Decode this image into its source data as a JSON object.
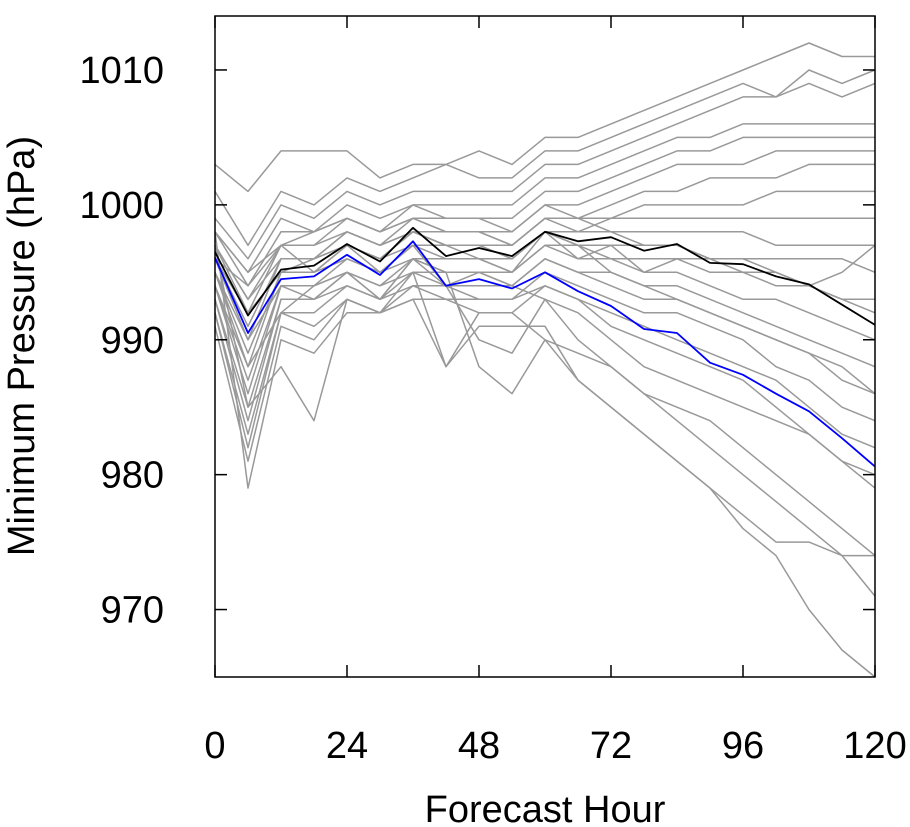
{
  "chart_data": {
    "type": "line",
    "title": "",
    "xlabel": "Forecast Hour",
    "ylabel": "Minimum Pressure (hPa)",
    "xlim": [
      0,
      120
    ],
    "ylim": [
      965,
      1014
    ],
    "xticks": [
      0,
      24,
      48,
      72,
      96,
      120
    ],
    "yticks": [
      970,
      980,
      990,
      1000,
      1010
    ],
    "grid": false,
    "legend": "none",
    "colors": {
      "ensemble": "#999999",
      "black_line": "#000000",
      "blue_line": "#0000ff"
    },
    "x": [
      0,
      6,
      12,
      18,
      24,
      30,
      36,
      42,
      48,
      54,
      60,
      66,
      72,
      78,
      84,
      90,
      96,
      102,
      108,
      114,
      120
    ],
    "highlight_series": [
      {
        "color": "#000000",
        "values": [
          996.5,
          991.8,
          995.2,
          995.5,
          997.1,
          995.8,
          998.3,
          996.2,
          996.8,
          996.2,
          998.0,
          997.3,
          997.6,
          996.6,
          997.1,
          995.7,
          995.6,
          994.7,
          994.1,
          992.6,
          991.1
        ]
      },
      {
        "color": "#0000ff",
        "values": [
          996.1,
          990.5,
          994.5,
          994.7,
          996.3,
          994.8,
          997.3,
          994.0,
          994.5,
          993.8,
          995.0,
          993.6,
          992.5,
          990.8,
          990.5,
          988.3,
          987.4,
          986.0,
          984.7,
          982.7,
          980.6
        ]
      }
    ],
    "ensemble_series": [
      [
        1003,
        1001,
        1004,
        1004,
        1004,
        1002,
        1003,
        1003,
        1004,
        1003,
        1005,
        1005,
        1006,
        1007,
        1008,
        1009,
        1010,
        1011,
        1012,
        1011,
        1011
      ],
      [
        1001,
        997,
        1001,
        1000,
        1002,
        1001,
        1002,
        1003,
        1002,
        1002,
        1004,
        1004,
        1005,
        1006,
        1007,
        1008,
        1009,
        1008,
        1010,
        1009,
        1010
      ],
      [
        999,
        996,
        1000,
        999,
        1001,
        1000,
        1001,
        1001,
        1001,
        1001,
        1003,
        1003,
        1004,
        1005,
        1006,
        1007,
        1008,
        1008,
        1009,
        1008,
        1009
      ],
      [
        998,
        995,
        999,
        998,
        1000,
        999,
        1000,
        1000,
        1000,
        1000,
        1002,
        1002,
        1003,
        1004,
        1005,
        1005,
        1006,
        1006,
        1006,
        1006,
        1006
      ],
      [
        998,
        994,
        998,
        998,
        999,
        998,
        1000,
        999,
        999,
        999,
        1001,
        1001,
        1002,
        1003,
        1004,
        1004,
        1005,
        1005,
        1005,
        1005,
        1005
      ],
      [
        997,
        993,
        997,
        997,
        999,
        998,
        999,
        999,
        999,
        998,
        1000,
        1000,
        1001,
        1002,
        1003,
        1003,
        1003,
        1004,
        1004,
        1004,
        1004
      ],
      [
        997,
        992,
        997,
        997,
        998,
        997,
        999,
        998,
        998,
        998,
        1000,
        999,
        1000,
        1001,
        1001,
        1002,
        1002,
        1002,
        1003,
        1003,
        1003
      ],
      [
        996,
        991,
        996,
        996,
        998,
        997,
        998,
        998,
        998,
        997,
        999,
        999,
        999,
        1000,
        1000,
        1000,
        1000,
        1001,
        1001,
        1001,
        1001
      ],
      [
        996,
        990,
        996,
        996,
        997,
        996,
        998,
        997,
        997,
        997,
        999,
        998,
        999,
        999,
        999,
        999,
        999,
        999,
        999,
        999,
        999
      ],
      [
        995,
        989,
        995,
        995,
        997,
        996,
        997,
        997,
        997,
        996,
        998,
        998,
        998,
        998,
        998,
        998,
        998,
        997,
        997,
        997,
        997
      ],
      [
        995,
        988,
        995,
        995,
        996,
        995,
        997,
        996,
        996,
        996,
        998,
        997,
        997,
        997,
        997,
        996,
        996,
        996,
        996,
        996,
        995
      ],
      [
        994,
        987,
        994,
        994,
        996,
        995,
        996,
        996,
        996,
        995,
        997,
        997,
        996,
        996,
        996,
        995,
        995,
        994,
        994,
        993,
        993
      ],
      [
        994,
        986,
        994,
        994,
        995,
        994,
        996,
        995,
        995,
        995,
        997,
        996,
        996,
        995,
        995,
        994,
        993,
        993,
        992,
        991,
        990
      ],
      [
        993,
        985,
        993,
        993,
        995,
        994,
        995,
        995,
        995,
        994,
        996,
        995,
        995,
        994,
        994,
        993,
        992,
        991,
        990,
        989,
        988
      ],
      [
        993,
        984,
        993,
        993,
        994,
        993,
        995,
        994,
        994,
        994,
        996,
        995,
        994,
        993,
        993,
        992,
        991,
        990,
        989,
        987,
        986
      ],
      [
        992,
        983,
        992,
        992,
        994,
        993,
        994,
        994,
        993,
        993,
        995,
        994,
        993,
        992,
        992,
        991,
        990,
        988,
        987,
        985,
        984
      ],
      [
        992,
        982,
        992,
        991,
        993,
        992,
        994,
        993,
        993,
        993,
        994,
        993,
        992,
        991,
        990,
        989,
        988,
        987,
        985,
        983,
        982
      ],
      [
        991,
        981,
        991,
        990,
        993,
        992,
        993,
        993,
        992,
        992,
        994,
        993,
        991,
        990,
        989,
        988,
        987,
        985,
        983,
        981,
        980
      ],
      [
        998,
        979,
        990,
        989,
        992,
        992,
        993,
        988,
        992,
        992,
        990,
        989,
        988,
        986,
        985,
        984,
        982,
        980,
        978,
        976,
        974
      ],
      [
        997,
        985,
        988,
        984,
        993,
        992,
        995,
        988,
        991,
        991,
        991,
        987,
        985,
        983,
        981,
        979,
        977,
        975,
        975,
        974,
        974
      ],
      [
        995,
        990,
        994,
        993,
        995,
        993,
        996,
        995,
        988,
        986,
        990,
        987,
        985,
        983,
        981,
        979,
        976,
        974,
        970,
        967,
        965
      ],
      [
        994,
        988,
        992,
        994,
        995,
        993,
        996,
        994,
        995,
        994,
        993,
        990,
        988,
        986,
        984,
        982,
        980,
        978,
        976,
        974,
        971
      ],
      [
        996,
        992,
        995,
        996,
        997,
        995,
        997,
        994,
        990,
        989,
        993,
        992,
        990,
        988,
        987,
        986,
        985,
        984,
        983,
        981,
        979
      ],
      [
        997,
        993,
        996,
        996,
        998,
        997,
        998,
        997,
        996,
        995,
        998,
        997,
        995,
        994,
        993,
        992,
        991,
        990,
        989,
        988,
        986
      ],
      [
        998,
        995,
        997,
        998,
        999,
        998,
        999,
        998,
        998,
        997,
        999,
        999,
        998,
        997,
        997,
        996,
        996,
        995,
        994,
        993,
        992
      ],
      [
        996,
        994,
        997,
        995,
        997,
        996,
        998,
        997,
        997,
        996,
        998,
        996,
        997,
        995,
        996,
        996,
        995,
        995,
        994,
        995,
        997
      ]
    ]
  }
}
